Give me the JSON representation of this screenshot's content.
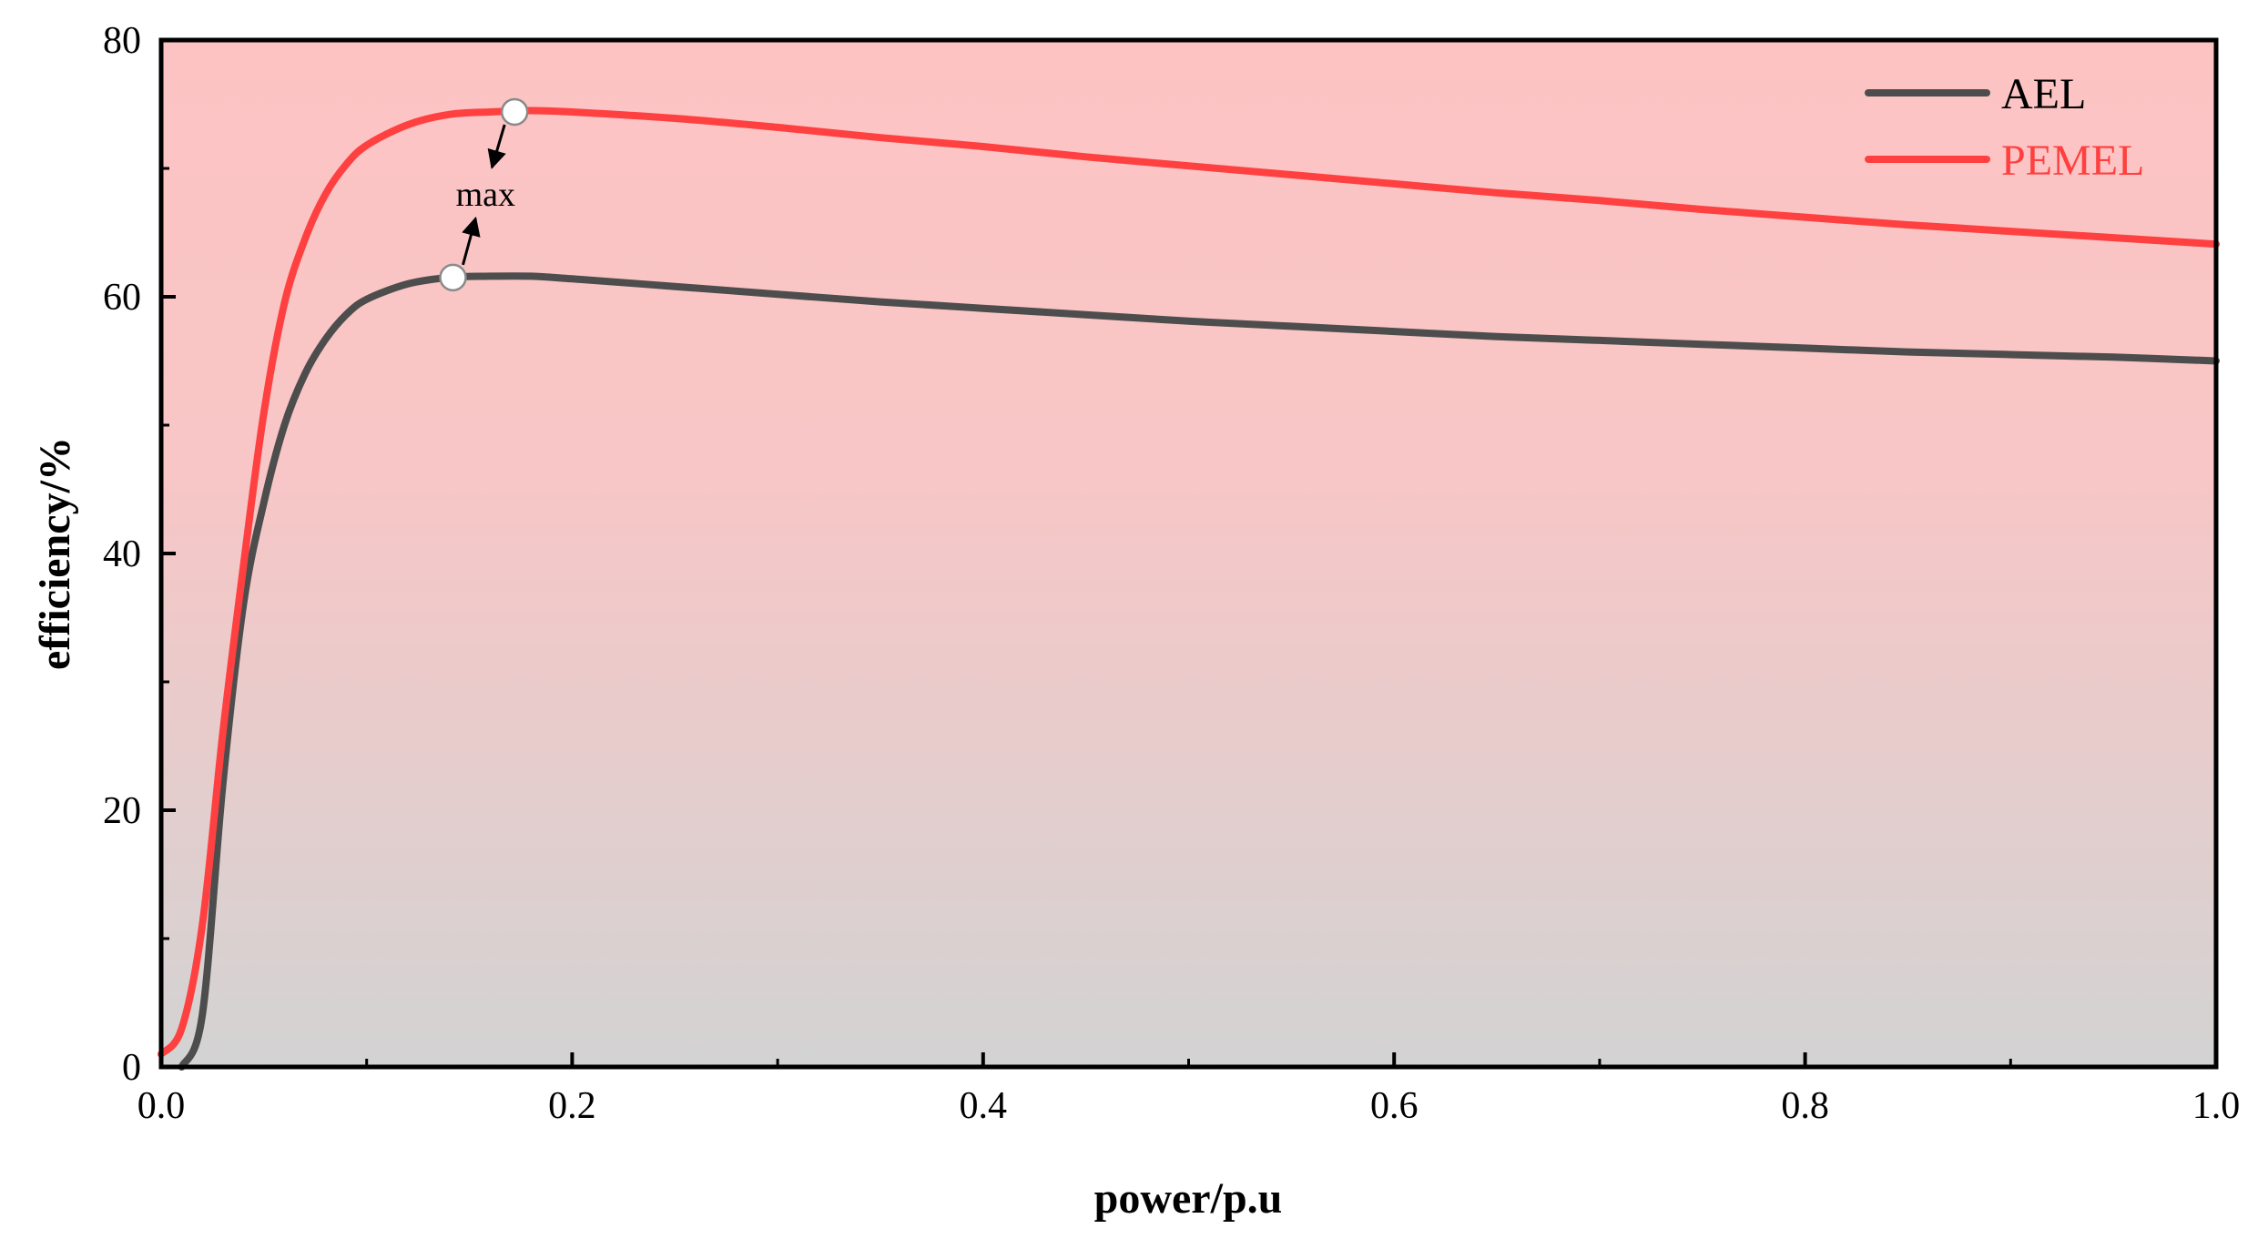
{
  "chart_data": {
    "type": "line",
    "xlabel": "power/p.u",
    "ylabel": "efficiency/%",
    "xlim": [
      0,
      1.0
    ],
    "ylim": [
      0,
      80
    ],
    "x_ticks": [
      "0.0",
      "0.2",
      "0.4",
      "0.6",
      "0.8",
      "1.0"
    ],
    "y_ticks": [
      "0",
      "20",
      "40",
      "60",
      "80"
    ],
    "grid": false,
    "legend_position": "top-right",
    "background_gradient": {
      "top": "#fdc3c3",
      "bottom": "#d3d3d3"
    },
    "series": [
      {
        "name": "AEL",
        "color": "#4d4d4d",
        "x": [
          0.01,
          0.02,
          0.03,
          0.04,
          0.05,
          0.06,
          0.07,
          0.08,
          0.09,
          0.1,
          0.12,
          0.14,
          0.16,
          0.18,
          0.2,
          0.25,
          0.3,
          0.35,
          0.4,
          0.45,
          0.5,
          0.55,
          0.6,
          0.65,
          0.7,
          0.75,
          0.8,
          0.85,
          0.9,
          0.95,
          1.0
        ],
        "y": [
          0,
          4,
          22,
          36,
          44,
          50,
          54,
          56.7,
          58.6,
          59.8,
          61.0,
          61.5,
          61.6,
          61.6,
          61.4,
          60.8,
          60.2,
          59.6,
          59.1,
          58.6,
          58.1,
          57.7,
          57.3,
          56.9,
          56.6,
          56.3,
          56.0,
          55.7,
          55.5,
          55.3,
          55.0
        ]
      },
      {
        "name": "PEMEL",
        "color": "#ff4040",
        "x": [
          0.0,
          0.01,
          0.02,
          0.03,
          0.04,
          0.05,
          0.06,
          0.07,
          0.08,
          0.09,
          0.1,
          0.12,
          0.14,
          0.16,
          0.18,
          0.2,
          0.25,
          0.3,
          0.35,
          0.4,
          0.45,
          0.5,
          0.55,
          0.6,
          0.65,
          0.7,
          0.75,
          0.8,
          0.85,
          0.9,
          0.95,
          1.0
        ],
        "y": [
          1,
          3,
          11,
          26,
          39,
          51,
          59.5,
          64.5,
          68,
          70.3,
          71.8,
          73.4,
          74.2,
          74.4,
          74.5,
          74.4,
          73.9,
          73.2,
          72.4,
          71.7,
          70.9,
          70.2,
          69.5,
          68.8,
          68.1,
          67.5,
          66.8,
          66.2,
          65.6,
          65.1,
          64.6,
          64.1
        ]
      }
    ],
    "annotations": [
      {
        "text": "max",
        "points": [
          {
            "series": "PEMEL",
            "x": 0.172,
            "y": 74.4
          },
          {
            "series": "AEL",
            "x": 0.142,
            "y": 61.5
          }
        ]
      }
    ]
  }
}
